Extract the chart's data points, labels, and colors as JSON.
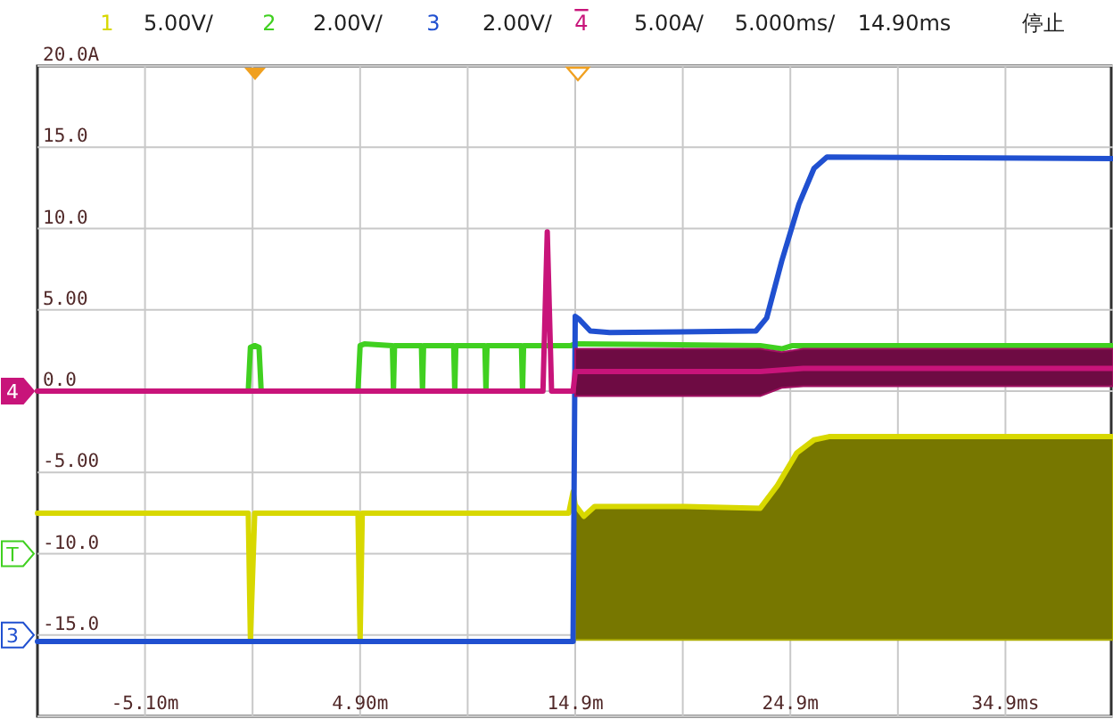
{
  "chart_data": {
    "type": "line",
    "xlim": [
      -10.1,
      39.9
    ],
    "ylim": [
      -20,
      20
    ],
    "xticks": [
      {
        "value": -5.1,
        "label": "-5.10m"
      },
      {
        "value": -0.1,
        "label": null
      },
      {
        "value": 4.9,
        "label": "4.90m"
      },
      {
        "value": 9.9,
        "label": null
      },
      {
        "value": 14.9,
        "label": "14.9m"
      },
      {
        "value": 19.9,
        "label": null
      },
      {
        "value": 24.9,
        "label": "24.9m"
      },
      {
        "value": 29.9,
        "label": null
      },
      {
        "value": 34.9,
        "label": "34.9ms"
      }
    ],
    "yticks": [
      {
        "value": 20,
        "label": "20.0A"
      },
      {
        "value": 15,
        "label": "15.0"
      },
      {
        "value": 10,
        "label": "10.0"
      },
      {
        "value": 5,
        "label": "5.00"
      },
      {
        "value": 0,
        "label": "0.0"
      },
      {
        "value": -5,
        "label": "-5.00"
      },
      {
        "value": -10,
        "label": "-10.0"
      },
      {
        "value": -15,
        "label": "-15.0"
      },
      {
        "value": -20,
        "label": null
      }
    ],
    "grid": true,
    "legend": "top",
    "line_style": "solid",
    "marker": "none",
    "series": [
      {
        "name": "1",
        "color": "#d8d800",
        "x": [
          -10.1,
          -0.3,
          -0.2,
          0,
          0.3,
          4.8,
          4.9,
          5.0,
          14.6,
          14.8,
          14.9,
          15.3,
          15.8,
          20,
          23.5,
          24.3,
          25.2,
          26.0,
          26.7,
          39.9
        ],
        "values": [
          -7.5,
          -7.5,
          -15.3,
          -7.5,
          -7.5,
          -7.5,
          -15.3,
          -7.5,
          -7.5,
          -6.2,
          -7.0,
          -7.7,
          -7.1,
          -7.1,
          -7.2,
          -5.8,
          -3.8,
          -3.0,
          -2.8,
          -2.8
        ],
        "lower": [
          null,
          null,
          null,
          null,
          null,
          null,
          null,
          null,
          null,
          null,
          -15.3,
          -15.3,
          -15.3,
          -15.3,
          -15.3,
          -15.3,
          -15.3,
          -15.3,
          -15.3,
          -15.3
        ],
        "upper": [
          null,
          null,
          null,
          null,
          null,
          null,
          null,
          null,
          null,
          null,
          -7.0,
          -7.7,
          -7.1,
          -7.1,
          -7.2,
          -5.8,
          -3.8,
          -3.0,
          -2.8,
          -2.8
        ]
      },
      {
        "name": "2",
        "color": "#40d020",
        "x": [
          -10.1,
          -0.3,
          -0.2,
          0.0,
          0.2,
          0.3,
          4.8,
          4.9,
          5.1,
          6.4,
          6.45,
          6.5,
          7.75,
          7.8,
          7.85,
          9.25,
          9.3,
          9.35,
          10.7,
          10.75,
          10.8,
          12.4,
          12.45,
          12.5,
          14.7,
          14.9,
          15.2,
          23.5,
          24.5,
          25,
          39.9
        ],
        "values": [
          0,
          0,
          2.7,
          2.8,
          2.7,
          0,
          0,
          2.8,
          2.9,
          2.8,
          0,
          2.8,
          2.8,
          0,
          2.8,
          2.8,
          0,
          2.8,
          2.8,
          0,
          2.8,
          2.8,
          0,
          2.8,
          2.8,
          2.9,
          2.9,
          2.8,
          2.6,
          2.8,
          2.8
        ]
      },
      {
        "name": "3",
        "color": "#2050d0",
        "x": [
          -10.1,
          14.8,
          14.9,
          15.1,
          15.6,
          16.5,
          23.3,
          23.8,
          24.5,
          25.3,
          26.0,
          26.6,
          39.9
        ],
        "values": [
          -15.4,
          -15.4,
          4.6,
          4.4,
          3.7,
          3.6,
          3.7,
          4.5,
          8,
          11.5,
          13.7,
          14.4,
          14.3
        ]
      },
      {
        "name": "4",
        "color": "#c8147a",
        "x": [
          -10.1,
          13.4,
          13.6,
          13.8,
          14.8,
          14.9,
          15.5,
          20,
          23.5,
          24.5,
          25.5,
          30,
          39.9
        ],
        "values": [
          0,
          0,
          9.8,
          0,
          0,
          1.2,
          1.2,
          1.2,
          1.2,
          1.3,
          1.4,
          1.4,
          1.4
        ],
        "lower": [
          null,
          null,
          null,
          null,
          null,
          -0.3,
          -0.3,
          -0.3,
          -0.3,
          0.2,
          0.3,
          0.3,
          0.3
        ],
        "upper": [
          null,
          null,
          null,
          null,
          null,
          2.6,
          2.6,
          2.6,
          2.6,
          2.4,
          2.6,
          2.6,
          2.6
        ]
      }
    ],
    "annotations": [
      "5.00V/",
      "2.00V/",
      "2.00V/",
      "5.00A/",
      "5.000ms/",
      "14.90ms",
      "停止",
      "4",
      "T",
      "3"
    ]
  }
}
